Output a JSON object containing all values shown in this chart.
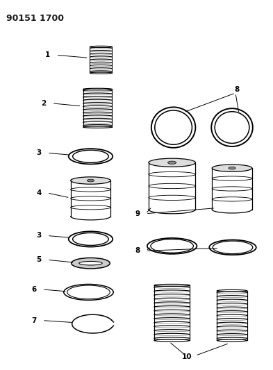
{
  "title": "90151 1700",
  "bg_color": "#ffffff",
  "line_color": "#1a1a1a",
  "fig_width": 3.93,
  "fig_height": 5.33,
  "dpi": 100
}
